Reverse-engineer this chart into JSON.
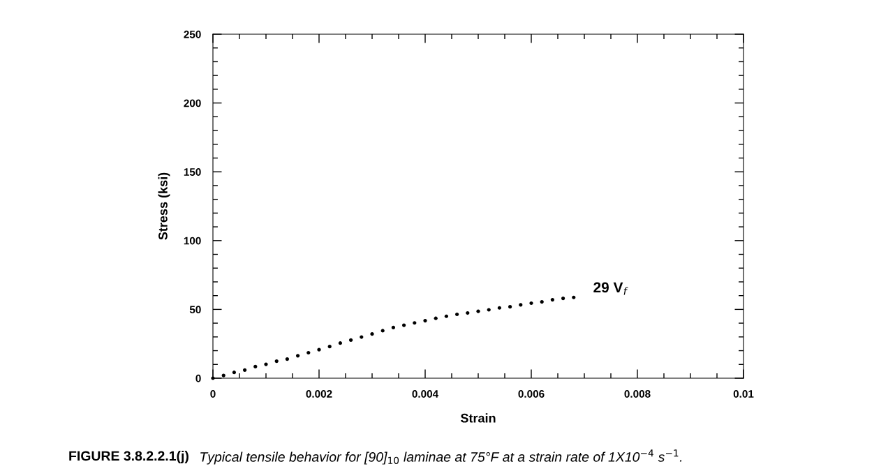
{
  "chart_data": {
    "type": "scatter",
    "xlabel": "Strain",
    "ylabel": "Stress (ksi)",
    "annotations": [
      "FIGURE 3.8.2.2.1(j)",
      "Typical tensile behavior for [90]$_{10}$ laminae at 75°F at a strain rate of 1X10$^{−4}$ s$^{−1}$."
    ],
    "xlim": [
      0,
      0.01
    ],
    "ylim": [
      0,
      250
    ],
    "xticks": [
      0,
      {
        "value": 0.0005,
        "label": null
      },
      {
        "value": 0.001,
        "label": null
      },
      {
        "value": 0.0015,
        "label": null
      },
      0.002,
      {
        "value": 0.0025,
        "label": null
      },
      {
        "value": 0.003,
        "label": null
      },
      {
        "value": 0.0035,
        "label": null
      },
      0.004,
      {
        "value": 0.0045,
        "label": null
      },
      {
        "value": 0.005,
        "label": null
      },
      {
        "value": 0.0055,
        "label": null
      },
      0.006,
      {
        "value": 0.0065,
        "label": null
      },
      {
        "value": 0.007,
        "label": null
      },
      {
        "value": 0.0075,
        "label": null
      },
      0.008,
      {
        "value": 0.0085,
        "label": null
      },
      {
        "value": 0.009,
        "label": null
      },
      {
        "value": 0.0095,
        "label": null
      },
      0.01
    ],
    "yticks": [
      0,
      {
        "value": 10,
        "label": null
      },
      {
        "value": 20,
        "label": null
      },
      {
        "value": 30,
        "label": null
      },
      {
        "value": 40,
        "label": null
      },
      50,
      {
        "value": 60,
        "label": null
      },
      {
        "value": 70,
        "label": null
      },
      {
        "value": 80,
        "label": null
      },
      {
        "value": 90,
        "label": null
      },
      100,
      {
        "value": 110,
        "label": null
      },
      {
        "value": 120,
        "label": null
      },
      {
        "value": 130,
        "label": null
      },
      {
        "value": 140,
        "label": null
      },
      150,
      {
        "value": 160,
        "label": null
      },
      {
        "value": 170,
        "label": null
      },
      {
        "value": 180,
        "label": null
      },
      {
        "value": 190,
        "label": null
      },
      200,
      {
        "value": 210,
        "label": null
      },
      {
        "value": 220,
        "label": null
      },
      {
        "value": 230,
        "label": null
      },
      {
        "value": 240,
        "label": null
      },
      250
    ],
    "grid": false,
    "legend": false,
    "marker": "circle",
    "series": [
      {
        "name": "29 V$_{f}$",
        "color": "#000000",
        "x": [
          0,
          0.0002,
          0.0004,
          0.0006,
          0.0008,
          0.001,
          0.0012,
          0.0014,
          0.0016,
          0.0018,
          0.002,
          0.0022,
          0.0024,
          0.0026,
          0.0028,
          0.003,
          0.0032,
          0.0034,
          0.0036,
          0.0038,
          0.004,
          0.0042,
          0.0044,
          0.0046,
          0.0048,
          0.005,
          0.0052,
          0.0054,
          0.0056,
          0.0058,
          0.006,
          0.0062,
          0.0064,
          0.0066,
          0.0068
        ],
        "values": [
          0,
          2.0,
          4.2,
          5.9,
          8.4,
          10.1,
          12.4,
          13.9,
          16.3,
          18.5,
          20.7,
          23.0,
          25.5,
          27.7,
          29.9,
          32.1,
          34.5,
          36.8,
          38.5,
          40.2,
          41.8,
          43.5,
          45.0,
          46.4,
          47.4,
          48.6,
          49.7,
          51.1,
          51.9,
          53.3,
          54.5,
          55.5,
          57.0,
          58.0,
          58.7
        ]
      }
    ]
  }
}
